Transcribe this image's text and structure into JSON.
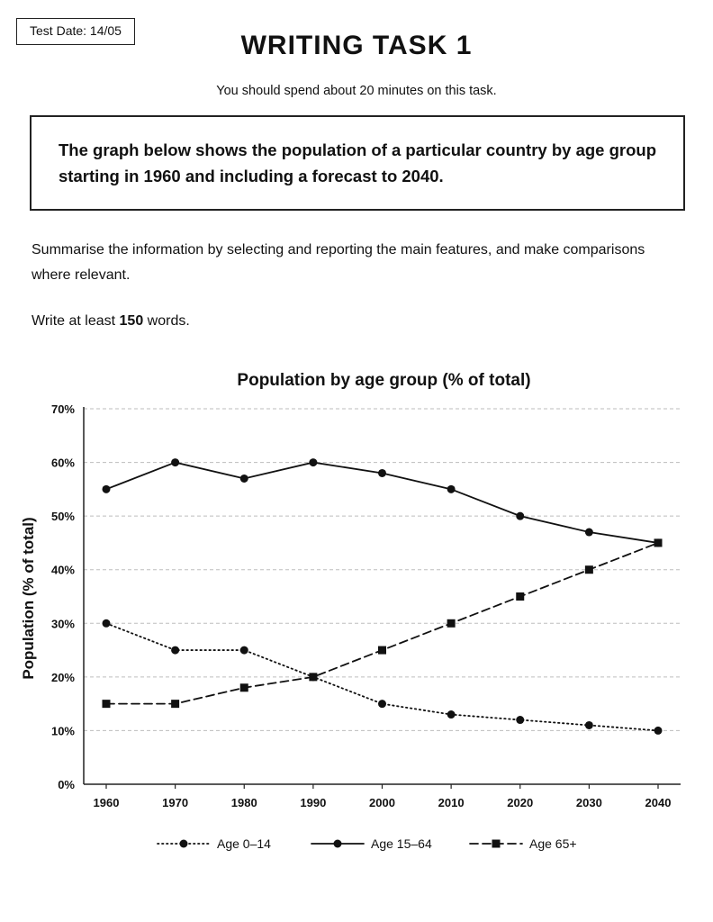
{
  "header": {
    "test_date": "Test Date: 14/05",
    "title": "WRITING TASK 1",
    "time_note": "You should spend about 20 minutes on this task."
  },
  "prompt": "The graph below shows the population of a particular country by age group starting in 1960 and including a forecast to 2040.",
  "instructions": "Summarise the information by selecting and reporting the main features, and make comparisons where relevant.",
  "word_count": {
    "prefix": "Write at least ",
    "number": "150",
    "suffix": " words."
  },
  "chart_data": {
    "type": "line",
    "title": "Population by age group (% of total)",
    "xlabel": "",
    "ylabel": "Population (% of total)",
    "x": [
      1960,
      1970,
      1980,
      1990,
      2000,
      2010,
      2020,
      2030,
      2040
    ],
    "ylim": [
      0,
      70
    ],
    "y_ticks": [
      "0%",
      "10%",
      "20%",
      "30%",
      "40%",
      "50%",
      "60%",
      "70%"
    ],
    "grid": true,
    "legend_position": "bottom",
    "series": [
      {
        "name": "Age 0–14",
        "style": "dotted",
        "marker": "circle",
        "values": [
          30,
          25,
          25,
          20,
          15,
          13,
          12,
          11,
          10
        ]
      },
      {
        "name": "Age 15–64",
        "style": "solid",
        "marker": "circle",
        "values": [
          55,
          60,
          57,
          60,
          58,
          55,
          50,
          47,
          45
        ]
      },
      {
        "name": "Age 65+",
        "style": "dashed",
        "marker": "square",
        "values": [
          15,
          15,
          18,
          20,
          25,
          30,
          35,
          40,
          45
        ]
      }
    ]
  }
}
